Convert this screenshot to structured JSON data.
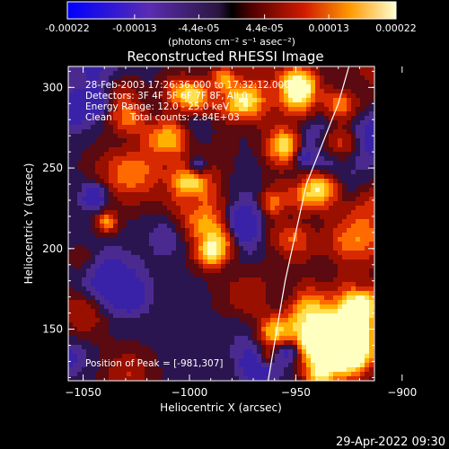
{
  "colorbar": {
    "ticks": [
      "-0.00022",
      "-0.00013",
      "-4.4e-05",
      "4.4e-05",
      "0.00013",
      "0.00022"
    ],
    "tick_values": [
      -0.00022,
      -0.00013,
      -4.4e-05,
      4.4e-05,
      0.00013,
      0.00022
    ],
    "range": [
      -0.00022,
      0.00022
    ],
    "units_text": "(photons cm⁻² s⁻¹ asec⁻²)"
  },
  "chart_data": {
    "type": "heatmap",
    "title": "Reconstructed RHESSI Image",
    "xlabel": "Heliocentric X (arcsec)",
    "ylabel": "Heliocentric Y (arcsec)",
    "xlim": [
      -1057,
      -913
    ],
    "ylim": [
      118,
      313
    ],
    "x_ticks": [
      -1050,
      -1000,
      -950,
      -900
    ],
    "x_tick_labels": [
      "−1050",
      "−1000",
      "−950",
      "−900"
    ],
    "y_ticks": [
      150,
      200,
      250,
      300
    ],
    "y_tick_labels": [
      "150",
      "200",
      "250",
      "300"
    ],
    "annotations": [
      "28-Feb-2003 17:26:36.000 to 17:32:12.000",
      "Detectors: 3F 4F 5F 6F 7F 8F, All 0",
      "Energy Range: 12.0 - 25.0 keV",
      "Clean      Total counts: 2.84E+03"
    ],
    "peak_label": "Position of Peak = [-981,307]",
    "peak_position": [
      -981,
      307
    ],
    "limb_curve": [
      [
        -963,
        118
      ],
      [
        -955,
        180
      ],
      [
        -945,
        240
      ],
      [
        -930,
        290
      ],
      [
        -925,
        313
      ]
    ]
  },
  "footer": {
    "date": "29-Apr-2022 09:30"
  }
}
